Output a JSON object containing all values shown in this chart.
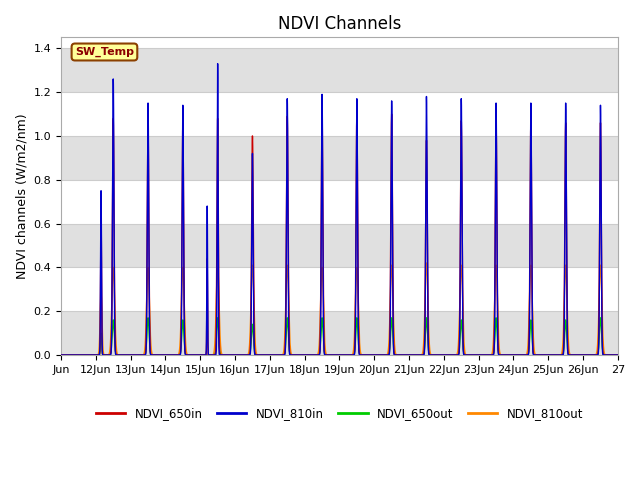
{
  "title": "NDVI Channels",
  "ylabel": "NDVI channels (W/m2/nm)",
  "xlim_start": 0,
  "xlim_end": 16,
  "ylim": [
    0,
    1.45
  ],
  "yticks": [
    0.0,
    0.2,
    0.4,
    0.6,
    0.8,
    1.0,
    1.2,
    1.4
  ],
  "xtick_labels": [
    "Jun",
    "12Jun",
    "13Jun",
    "14Jun",
    "15Jun",
    "16Jun",
    "17Jun",
    "18Jun",
    "19Jun",
    "20Jun",
    "21Jun",
    "22Jun",
    "23Jun",
    "24Jun",
    "25Jun",
    "26Jun",
    "27"
  ],
  "sw_temp_label": "SW_Temp",
  "colors": {
    "NDVI_650in": "#cc0000",
    "NDVI_810in": "#0000cc",
    "NDVI_650out": "#00cc00",
    "NDVI_810out": "#ff8800"
  },
  "background_color": "#ffffff",
  "plot_bg_color": "#ffffff",
  "stripe_color": "#e0e0e0",
  "grid_line_color": "#cccccc",
  "title_fontsize": 12,
  "axis_fontsize": 9,
  "tick_fontsize": 8,
  "figsize": [
    6.4,
    4.8
  ],
  "dpi": 100
}
